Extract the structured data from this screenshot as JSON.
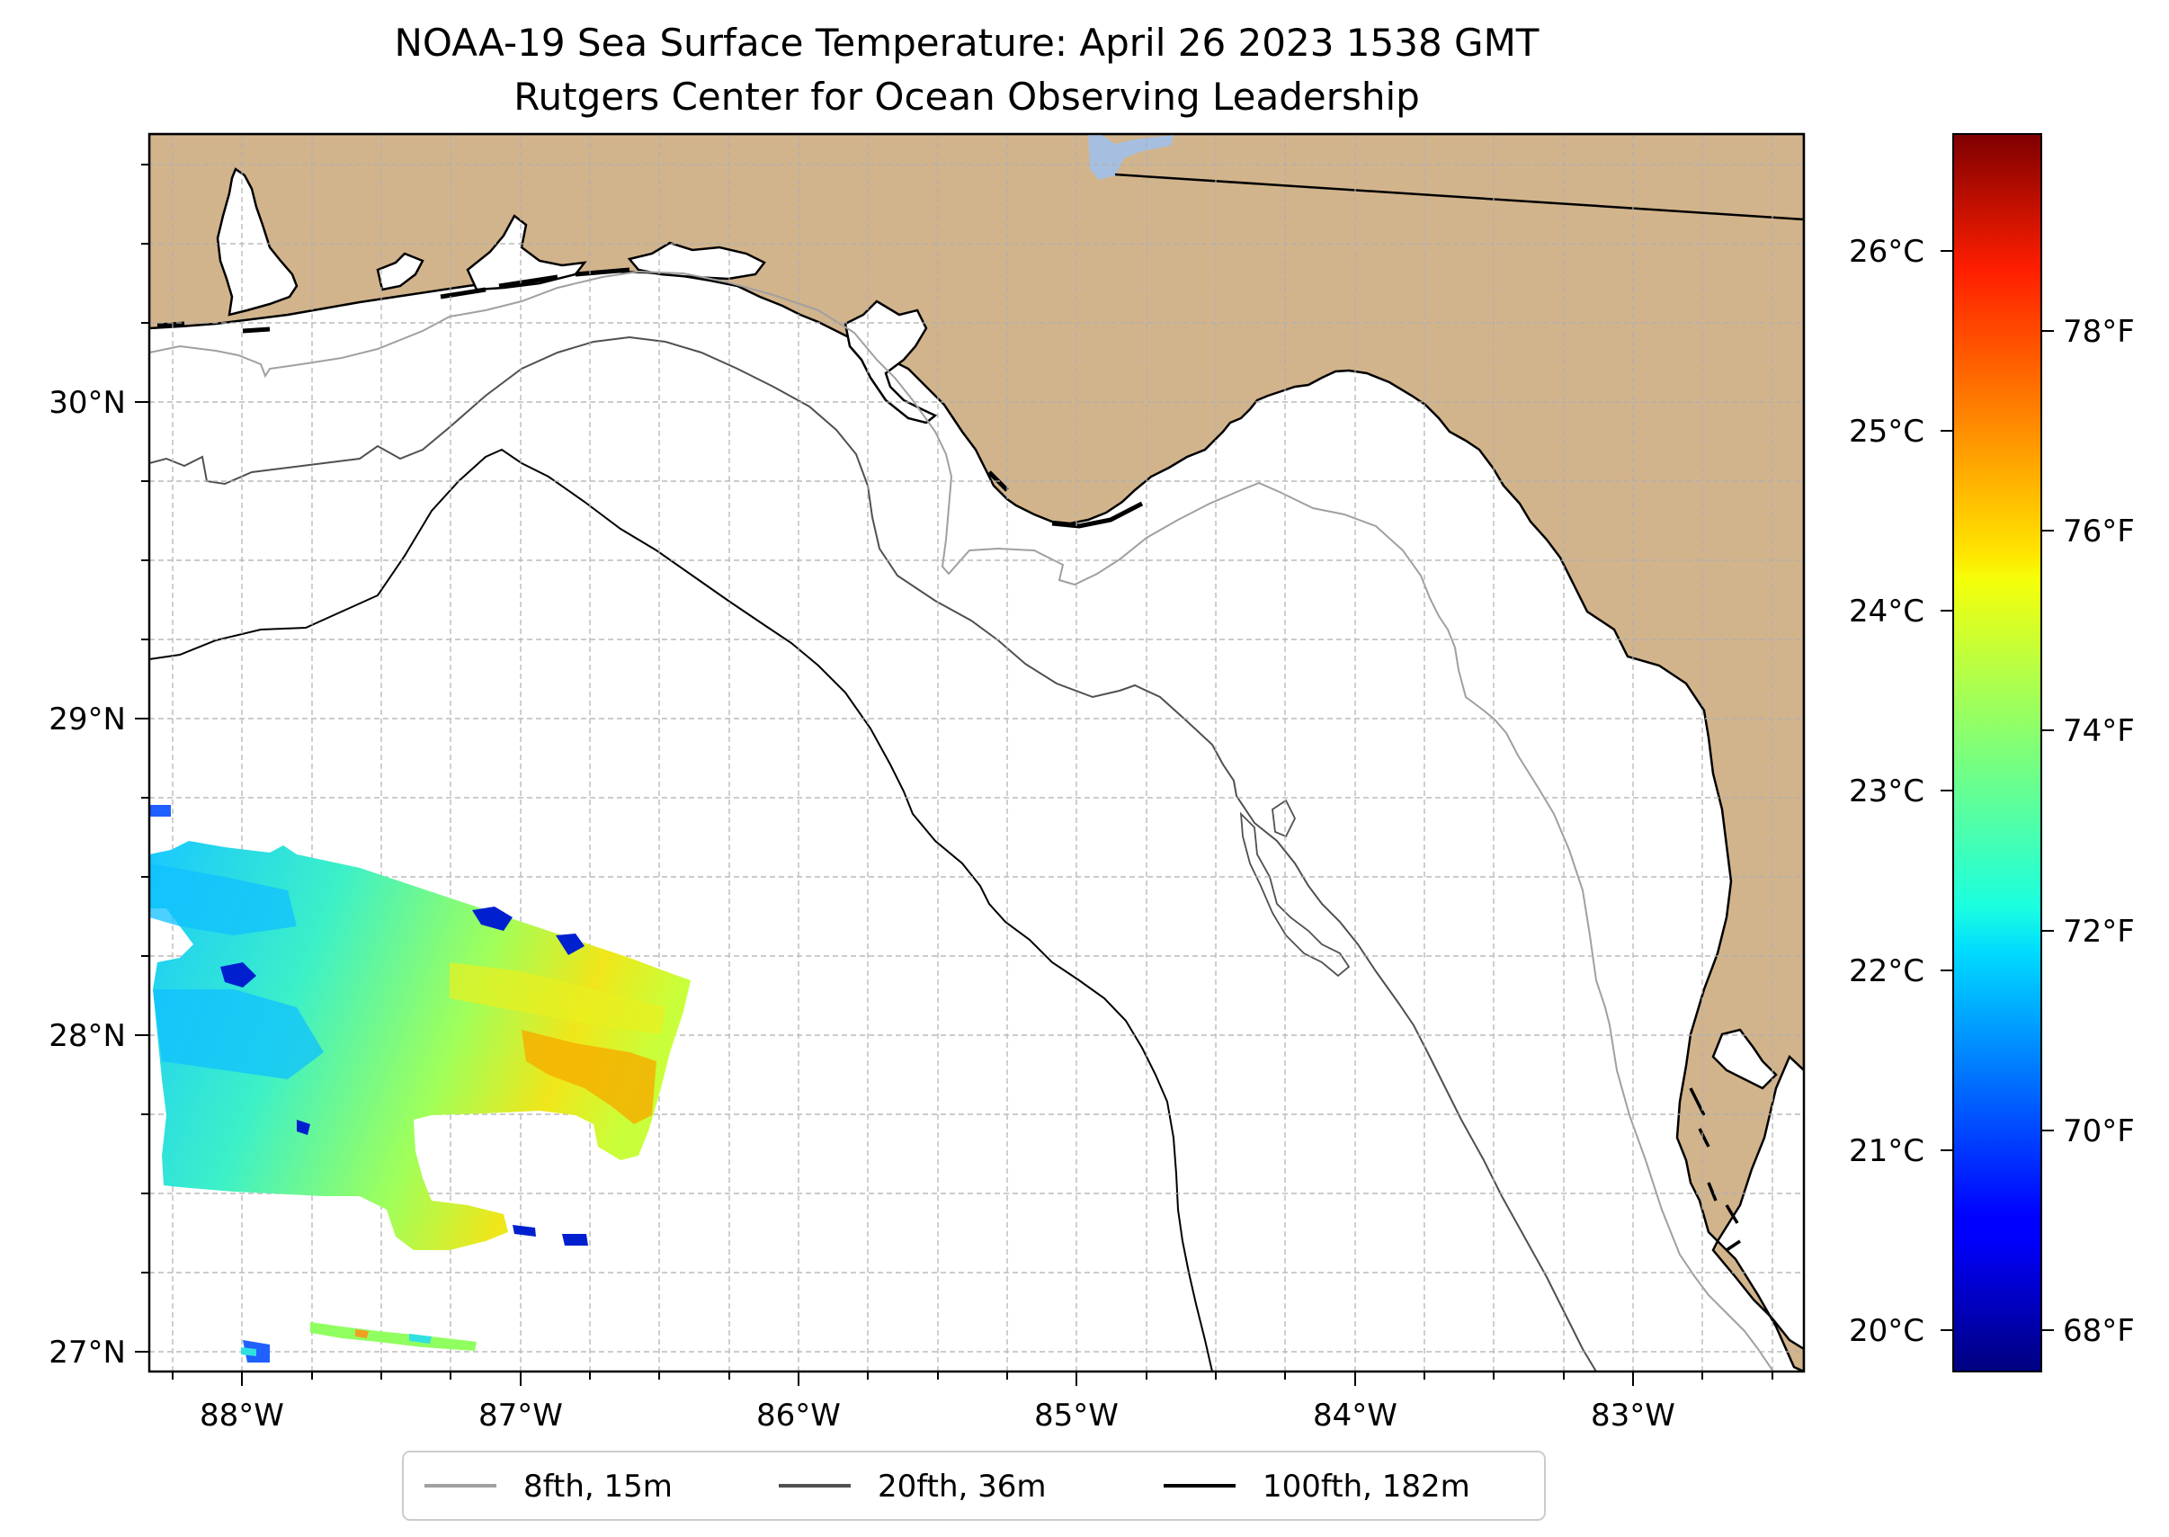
{
  "figure": {
    "title": "NOAA-19 Sea Surface Temperature: April 26 2023 1538 GMT",
    "subtitle": "Rutgers Center for Ocean Observing Leadership"
  },
  "map": {
    "extent": {
      "lon_min": -88.33,
      "lon_max": -82.37,
      "lat_min": 26.94,
      "lat_max": 30.85
    },
    "land_color": "#d2b48c",
    "ocean_color": "#ffffff",
    "lake_color": "#a6bfe0",
    "gridlines": "dashed, light gray",
    "lon_ticks": [
      {
        "value": -88,
        "label": "88°W"
      },
      {
        "value": -87,
        "label": "87°W"
      },
      {
        "value": -86,
        "label": "86°W"
      },
      {
        "value": -85,
        "label": "85°W"
      },
      {
        "value": -84,
        "label": "84°W"
      },
      {
        "value": -83,
        "label": "83°W"
      }
    ],
    "lat_ticks": [
      {
        "value": 27,
        "label": "27°N"
      },
      {
        "value": 28,
        "label": "28°N"
      },
      {
        "value": 29,
        "label": "29°N"
      },
      {
        "value": 30,
        "label": "30°N"
      }
    ]
  },
  "legend": {
    "placement": "bottom-center",
    "items": [
      {
        "label": "8fth, 15m",
        "color": "#a0a0a0"
      },
      {
        "label": "20fth, 36m",
        "color": "#505050"
      },
      {
        "label": "100fth, 182m",
        "color": "#000000"
      }
    ]
  },
  "colorbar": {
    "colormap": "jet",
    "celsius_range": [
      19.8,
      26.7
    ],
    "celsius_ticks": [
      {
        "value": 20,
        "label": "20°C"
      },
      {
        "value": 21,
        "label": "21°C"
      },
      {
        "value": 22,
        "label": "22°C"
      },
      {
        "value": 23,
        "label": "23°C"
      },
      {
        "value": 24,
        "label": "24°C"
      },
      {
        "value": 25,
        "label": "25°C"
      },
      {
        "value": 26,
        "label": "26°C"
      }
    ],
    "fahrenheit_ticks": [
      {
        "value": 68,
        "label": "68°F"
      },
      {
        "value": 70,
        "label": "70°F"
      },
      {
        "value": 72,
        "label": "72°F"
      },
      {
        "value": 74,
        "label": "74°F"
      },
      {
        "value": 76,
        "label": "76°F"
      },
      {
        "value": 78,
        "label": "78°F"
      }
    ]
  }
}
